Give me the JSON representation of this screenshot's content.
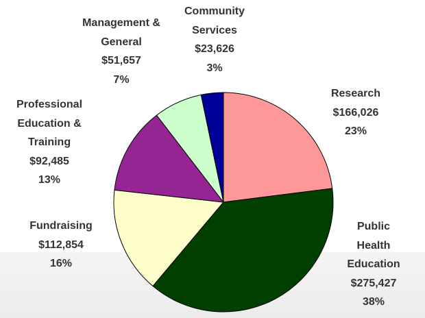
{
  "chart_data": {
    "type": "pie",
    "categories": [
      "Research",
      "Public Health\nEducation",
      "Fundraising",
      "Professional\nEducation &\nTraining",
      "Management &\nGeneral",
      "Community\nServices"
    ],
    "values": [
      166026,
      275427,
      112854,
      92485,
      51657,
      23626
    ],
    "value_labels": [
      "$166,026",
      "$275,427",
      "$112,854",
      "$92,485",
      "$51,657",
      "$23,626"
    ],
    "percent_labels": [
      "23%",
      "38%",
      "16%",
      "13%",
      "7%",
      "3%"
    ],
    "colors": [
      "#ff9999",
      "#003f00",
      "#ffffcc",
      "#942593",
      "#ccffcc",
      "#000099"
    ]
  }
}
